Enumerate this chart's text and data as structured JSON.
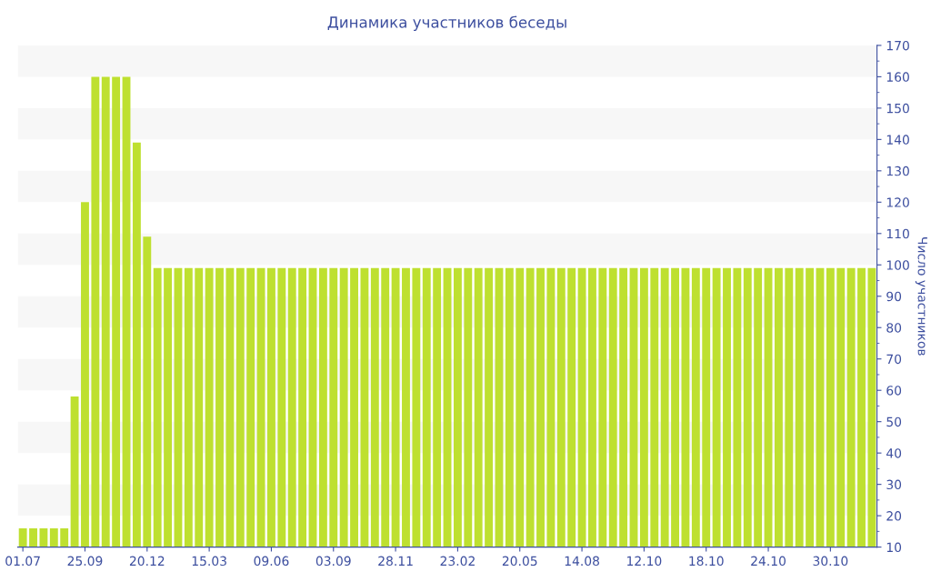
{
  "chart_data": {
    "type": "bar",
    "title": "Динамика участников беседы",
    "ylabel": "Число участников",
    "categories": [
      "01.07",
      null,
      null,
      null,
      null,
      null,
      "25.09",
      null,
      null,
      null,
      null,
      null,
      "20.12",
      null,
      null,
      null,
      null,
      null,
      "15.03",
      null,
      null,
      null,
      null,
      null,
      "09.06",
      null,
      null,
      null,
      null,
      null,
      "03.09",
      null,
      null,
      null,
      null,
      null,
      "28.11",
      null,
      null,
      null,
      null,
      null,
      "23.02",
      null,
      null,
      null,
      null,
      null,
      "20.05",
      null,
      null,
      null,
      null,
      null,
      "14.08",
      null,
      null,
      null,
      null,
      null,
      "12.10",
      null,
      null,
      null,
      null,
      null,
      "18.10",
      null,
      null,
      null,
      null,
      null,
      "24.10",
      null,
      null,
      null,
      null,
      null,
      "30.10",
      null,
      null,
      null,
      null
    ],
    "values": [
      16,
      16,
      16,
      16,
      16,
      58,
      120,
      160,
      160,
      160,
      160,
      139,
      109,
      99,
      99,
      99,
      99,
      99,
      99,
      99,
      99,
      99,
      99,
      99,
      99,
      99,
      99,
      99,
      99,
      99,
      99,
      99,
      99,
      99,
      99,
      99,
      99,
      99,
      99,
      99,
      99,
      99,
      99,
      99,
      99,
      99,
      99,
      99,
      99,
      99,
      99,
      99,
      99,
      99,
      99,
      99,
      99,
      99,
      99,
      99,
      99,
      99,
      99,
      99,
      99,
      99,
      99,
      99,
      99,
      99,
      99,
      99,
      99,
      99,
      99,
      99,
      99,
      99,
      99,
      99,
      99,
      99,
      99
    ],
    "color": "#bee030",
    "ylim": [
      10,
      170
    ],
    "yticks": [
      10,
      20,
      30,
      40,
      50,
      60,
      70,
      80,
      90,
      100,
      110,
      120,
      130,
      140,
      150,
      160,
      170
    ],
    "bands": [
      {
        "axis": "y",
        "from": 160,
        "to": 170,
        "color": "#f7f7f7"
      },
      {
        "axis": "y",
        "from": 140,
        "to": 150,
        "color": "#f7f7f7"
      },
      {
        "axis": "y",
        "from": 120,
        "to": 130,
        "color": "#f7f7f7"
      },
      {
        "axis": "y",
        "from": 100,
        "to": 110,
        "color": "#f7f7f7"
      },
      {
        "axis": "y",
        "from": 80,
        "to": 90,
        "color": "#f7f7f7"
      },
      {
        "axis": "y",
        "from": 60,
        "to": 70,
        "color": "#f7f7f7"
      },
      {
        "axis": "y",
        "from": 40,
        "to": 50,
        "color": "#f7f7f7"
      },
      {
        "axis": "y",
        "from": 20,
        "to": 30,
        "color": "#f7f7f7"
      }
    ]
  }
}
